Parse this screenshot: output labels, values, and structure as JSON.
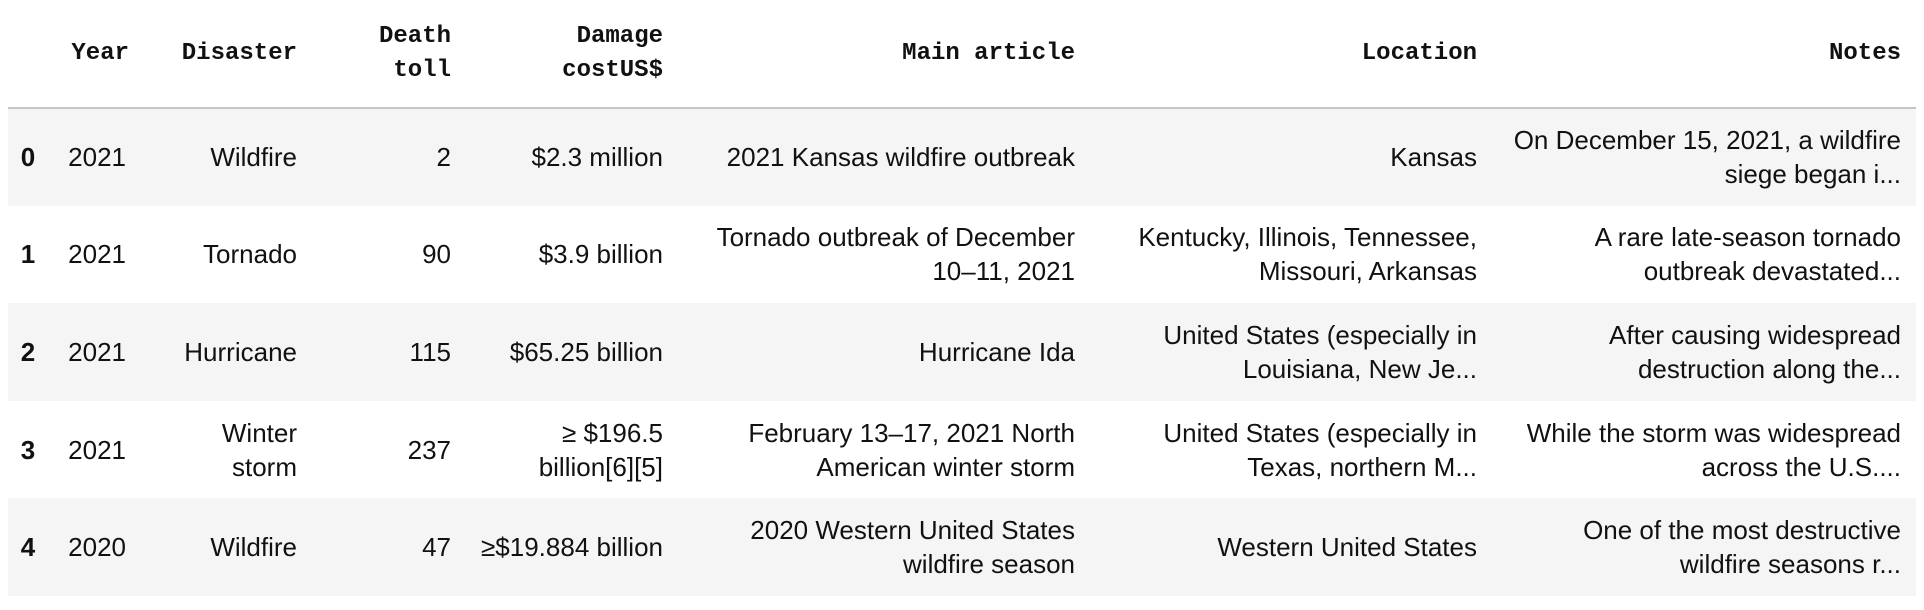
{
  "table": {
    "columns": [
      "Year",
      "Disaster",
      "Death toll",
      "Damage costUS$",
      "Main article",
      "Location",
      "Notes"
    ],
    "header_lines": [
      [
        "Year"
      ],
      [
        "Disaster"
      ],
      [
        "Death",
        "toll"
      ],
      [
        "Damage",
        "costUS$"
      ],
      [
        "Main article"
      ],
      [
        "Location"
      ],
      [
        "Notes"
      ]
    ],
    "rows": [
      {
        "index": "0",
        "year": "2021",
        "disaster": "Wildfire",
        "death_toll": "2",
        "damage_cost": "$2.3 million",
        "main_article": "2021 Kansas wildfire outbreak",
        "location": "Kansas",
        "notes": "On December 15, 2021, a wildfire siege began i..."
      },
      {
        "index": "1",
        "year": "2021",
        "disaster": "Tornado",
        "death_toll": "90",
        "damage_cost": "$3.9 billion",
        "main_article": "Tornado outbreak of December 10–11, 2021",
        "location": "Kentucky, Illinois, Tennessee, Missouri, Arkansas",
        "notes": "A rare late-season tornado outbreak devastated..."
      },
      {
        "index": "2",
        "year": "2021",
        "disaster": "Hurricane",
        "death_toll": "115",
        "damage_cost": "$65.25 billion",
        "main_article": "Hurricane Ida",
        "location": "United States (especially in Louisiana, New Je...",
        "notes": "After causing widespread destruction along the..."
      },
      {
        "index": "3",
        "year": "2021",
        "disaster": "Winter storm",
        "death_toll": "237",
        "damage_cost": "≥ $196.5 billion[6][5]",
        "main_article": "February 13–17, 2021 North American winter storm",
        "location": "United States (especially in Texas, northern M...",
        "notes": "While the storm was widespread across the U.S...."
      },
      {
        "index": "4",
        "year": "2020",
        "disaster": "Wildfire",
        "death_toll": "47",
        "damage_cost": "≥$19.884 billion",
        "main_article": "2020 Western United States wildfire season",
        "location": "Western United States",
        "notes": "One of the most destructive wildfire seasons r..."
      }
    ]
  },
  "colors": {
    "stripe_background": "#f5f5f5",
    "header_border": "#c6c6c6",
    "text": "#111111"
  }
}
